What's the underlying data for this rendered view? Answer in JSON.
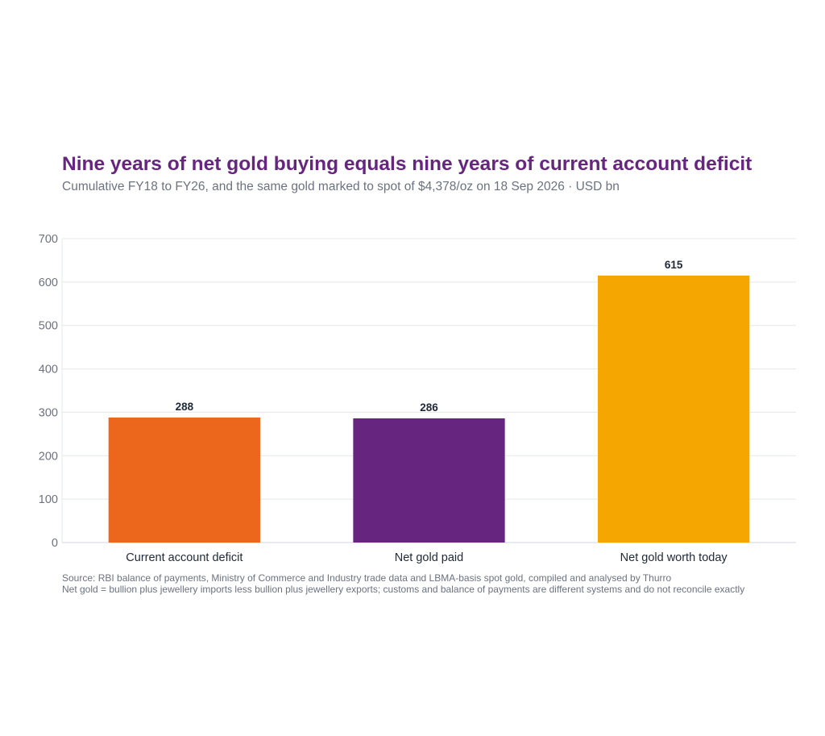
{
  "chart_data": {
    "type": "bar",
    "title": "Nine years of net gold buying equals nine years of current account deficit",
    "subtitle": "Cumulative FY18 to FY26, and the same gold marked to spot of $4,378/oz on 18 Sep 2026 · USD bn",
    "categories": [
      "Current account deficit",
      "Net gold paid",
      "Net gold worth today"
    ],
    "values": [
      288,
      286,
      615
    ],
    "colors": [
      "#ec671c",
      "#66257f",
      "#f6a600"
    ],
    "ylim": [
      0,
      700
    ],
    "yticks": [
      0,
      100,
      200,
      300,
      400,
      500,
      600,
      700
    ],
    "grid": true,
    "data_labels": true
  },
  "footnotes": {
    "source": "Source: RBI balance of payments, Ministry of Commerce and Industry trade data and LBMA-basis spot gold, compiled and analysed by Thurro",
    "note": "Net gold = bullion plus jewellery imports less bullion plus jewellery exports; customs and balance of payments are different systems and do not reconcile exactly"
  }
}
